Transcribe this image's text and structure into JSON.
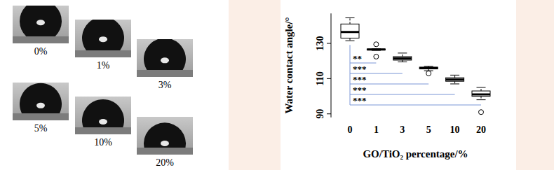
{
  "image_panel": {
    "labels": [
      "0%",
      "1%",
      "3%",
      "5%",
      "10%",
      "20%"
    ]
  },
  "chart_data": {
    "type": "box",
    "categories": [
      "0",
      "1",
      "3",
      "5",
      "10",
      "20"
    ],
    "boxes": [
      {
        "min": 131.5,
        "q1": 133,
        "median": 136.5,
        "q3": 141,
        "max": 144.5,
        "outliers": []
      },
      {
        "min": 126,
        "q1": 126.3,
        "median": 126.5,
        "q3": 126.8,
        "max": 127,
        "outliers": [
          129.5,
          122.5
        ]
      },
      {
        "min": 119.5,
        "q1": 120.5,
        "median": 121.5,
        "q3": 122.5,
        "max": 124.5,
        "outliers": []
      },
      {
        "min": 114.5,
        "q1": 115.5,
        "median": 116,
        "q3": 116.5,
        "max": 117,
        "outliers": [
          113
        ]
      },
      {
        "min": 107,
        "q1": 108.5,
        "median": 109.5,
        "q3": 110.5,
        "max": 112,
        "outliers": []
      },
      {
        "min": 98,
        "q1": 100,
        "median": 101,
        "q3": 103,
        "max": 105,
        "outliers": [
          91
        ]
      }
    ],
    "color": "#000000",
    "x_label": "GO/TiO₂ percentage/%",
    "y_label": "Water contact angle/°",
    "ylim": [
      88,
      147
    ],
    "yticks": [
      90,
      110,
      130
    ],
    "comparisons": [
      {
        "to": "1",
        "label": "**",
        "color": "#7a96d6"
      },
      {
        "to": "3",
        "label": "***",
        "color": "#7a96d6"
      },
      {
        "to": "5",
        "label": "***",
        "color": "#7a96d6"
      },
      {
        "to": "10",
        "label": "***",
        "color": "#7a96d6"
      },
      {
        "to": "20",
        "label": "***",
        "color": "#7a96d6"
      }
    ]
  }
}
